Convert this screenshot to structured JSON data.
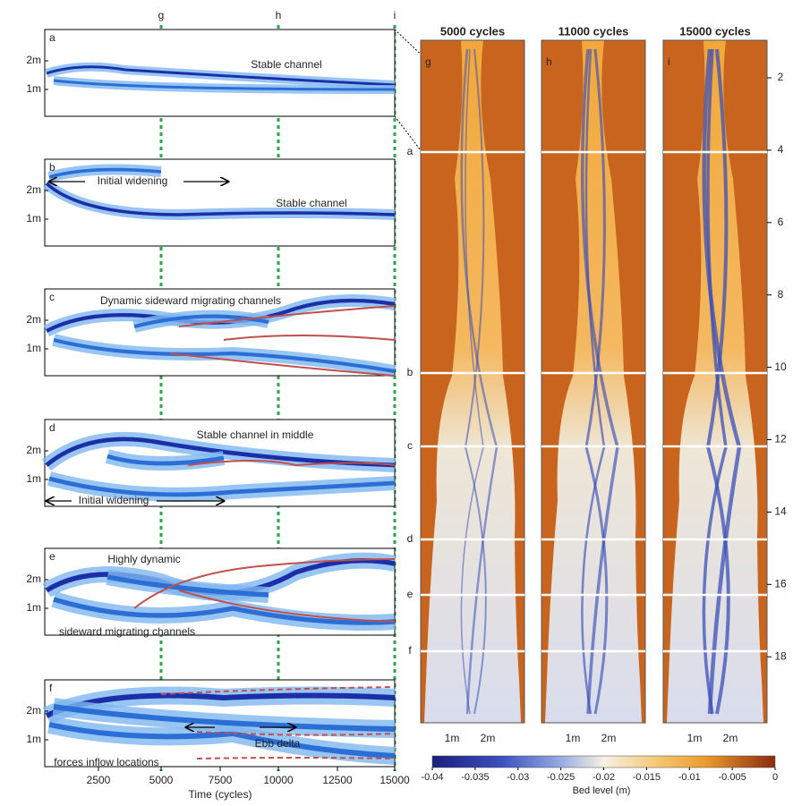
{
  "time_markers": [
    "g",
    "h",
    "i"
  ],
  "left_panels": [
    {
      "label": "a",
      "annotations": [
        "Stable channel"
      ]
    },
    {
      "label": "b",
      "annotations": [
        "Initial widening",
        "Stable channel"
      ]
    },
    {
      "label": "c",
      "annotations": [
        "Dynamic sideward migrating channels"
      ]
    },
    {
      "label": "d",
      "annotations": [
        "Stable channel in middle",
        "Initial widening"
      ]
    },
    {
      "label": "e",
      "annotations": [
        "Highly dynamic",
        "sideward migrating channels"
      ]
    },
    {
      "label": "f",
      "annotations": [
        "Ebb delta",
        "forces inflow locations"
      ]
    }
  ],
  "left_y_ticks": [
    "2m",
    "1m"
  ],
  "x_axis": {
    "ticks": [
      "2500",
      "5000",
      "7500",
      "10000",
      "12500",
      "15000"
    ],
    "label": "Time (cycles)"
  },
  "right_panels": [
    {
      "title": "5000 cycles",
      "label": "g"
    },
    {
      "title": "11000 cycles",
      "label": "h"
    },
    {
      "title": "15000 cycles",
      "label": "i"
    }
  ],
  "right_x_ticks": [
    "1m",
    "2m"
  ],
  "section_labels": [
    "a",
    "b",
    "c",
    "d",
    "e",
    "f"
  ],
  "distance_ticks": [
    "2",
    "4",
    "6",
    "8",
    "10",
    "12",
    "14",
    "16",
    "18"
  ],
  "colorbar": {
    "ticks": [
      "-0.04",
      "-0.035",
      "-0.03",
      "-0.025",
      "-0.02",
      "-0.015",
      "-0.01",
      "-0.005",
      "0"
    ],
    "label": "Bed level (m)"
  }
}
